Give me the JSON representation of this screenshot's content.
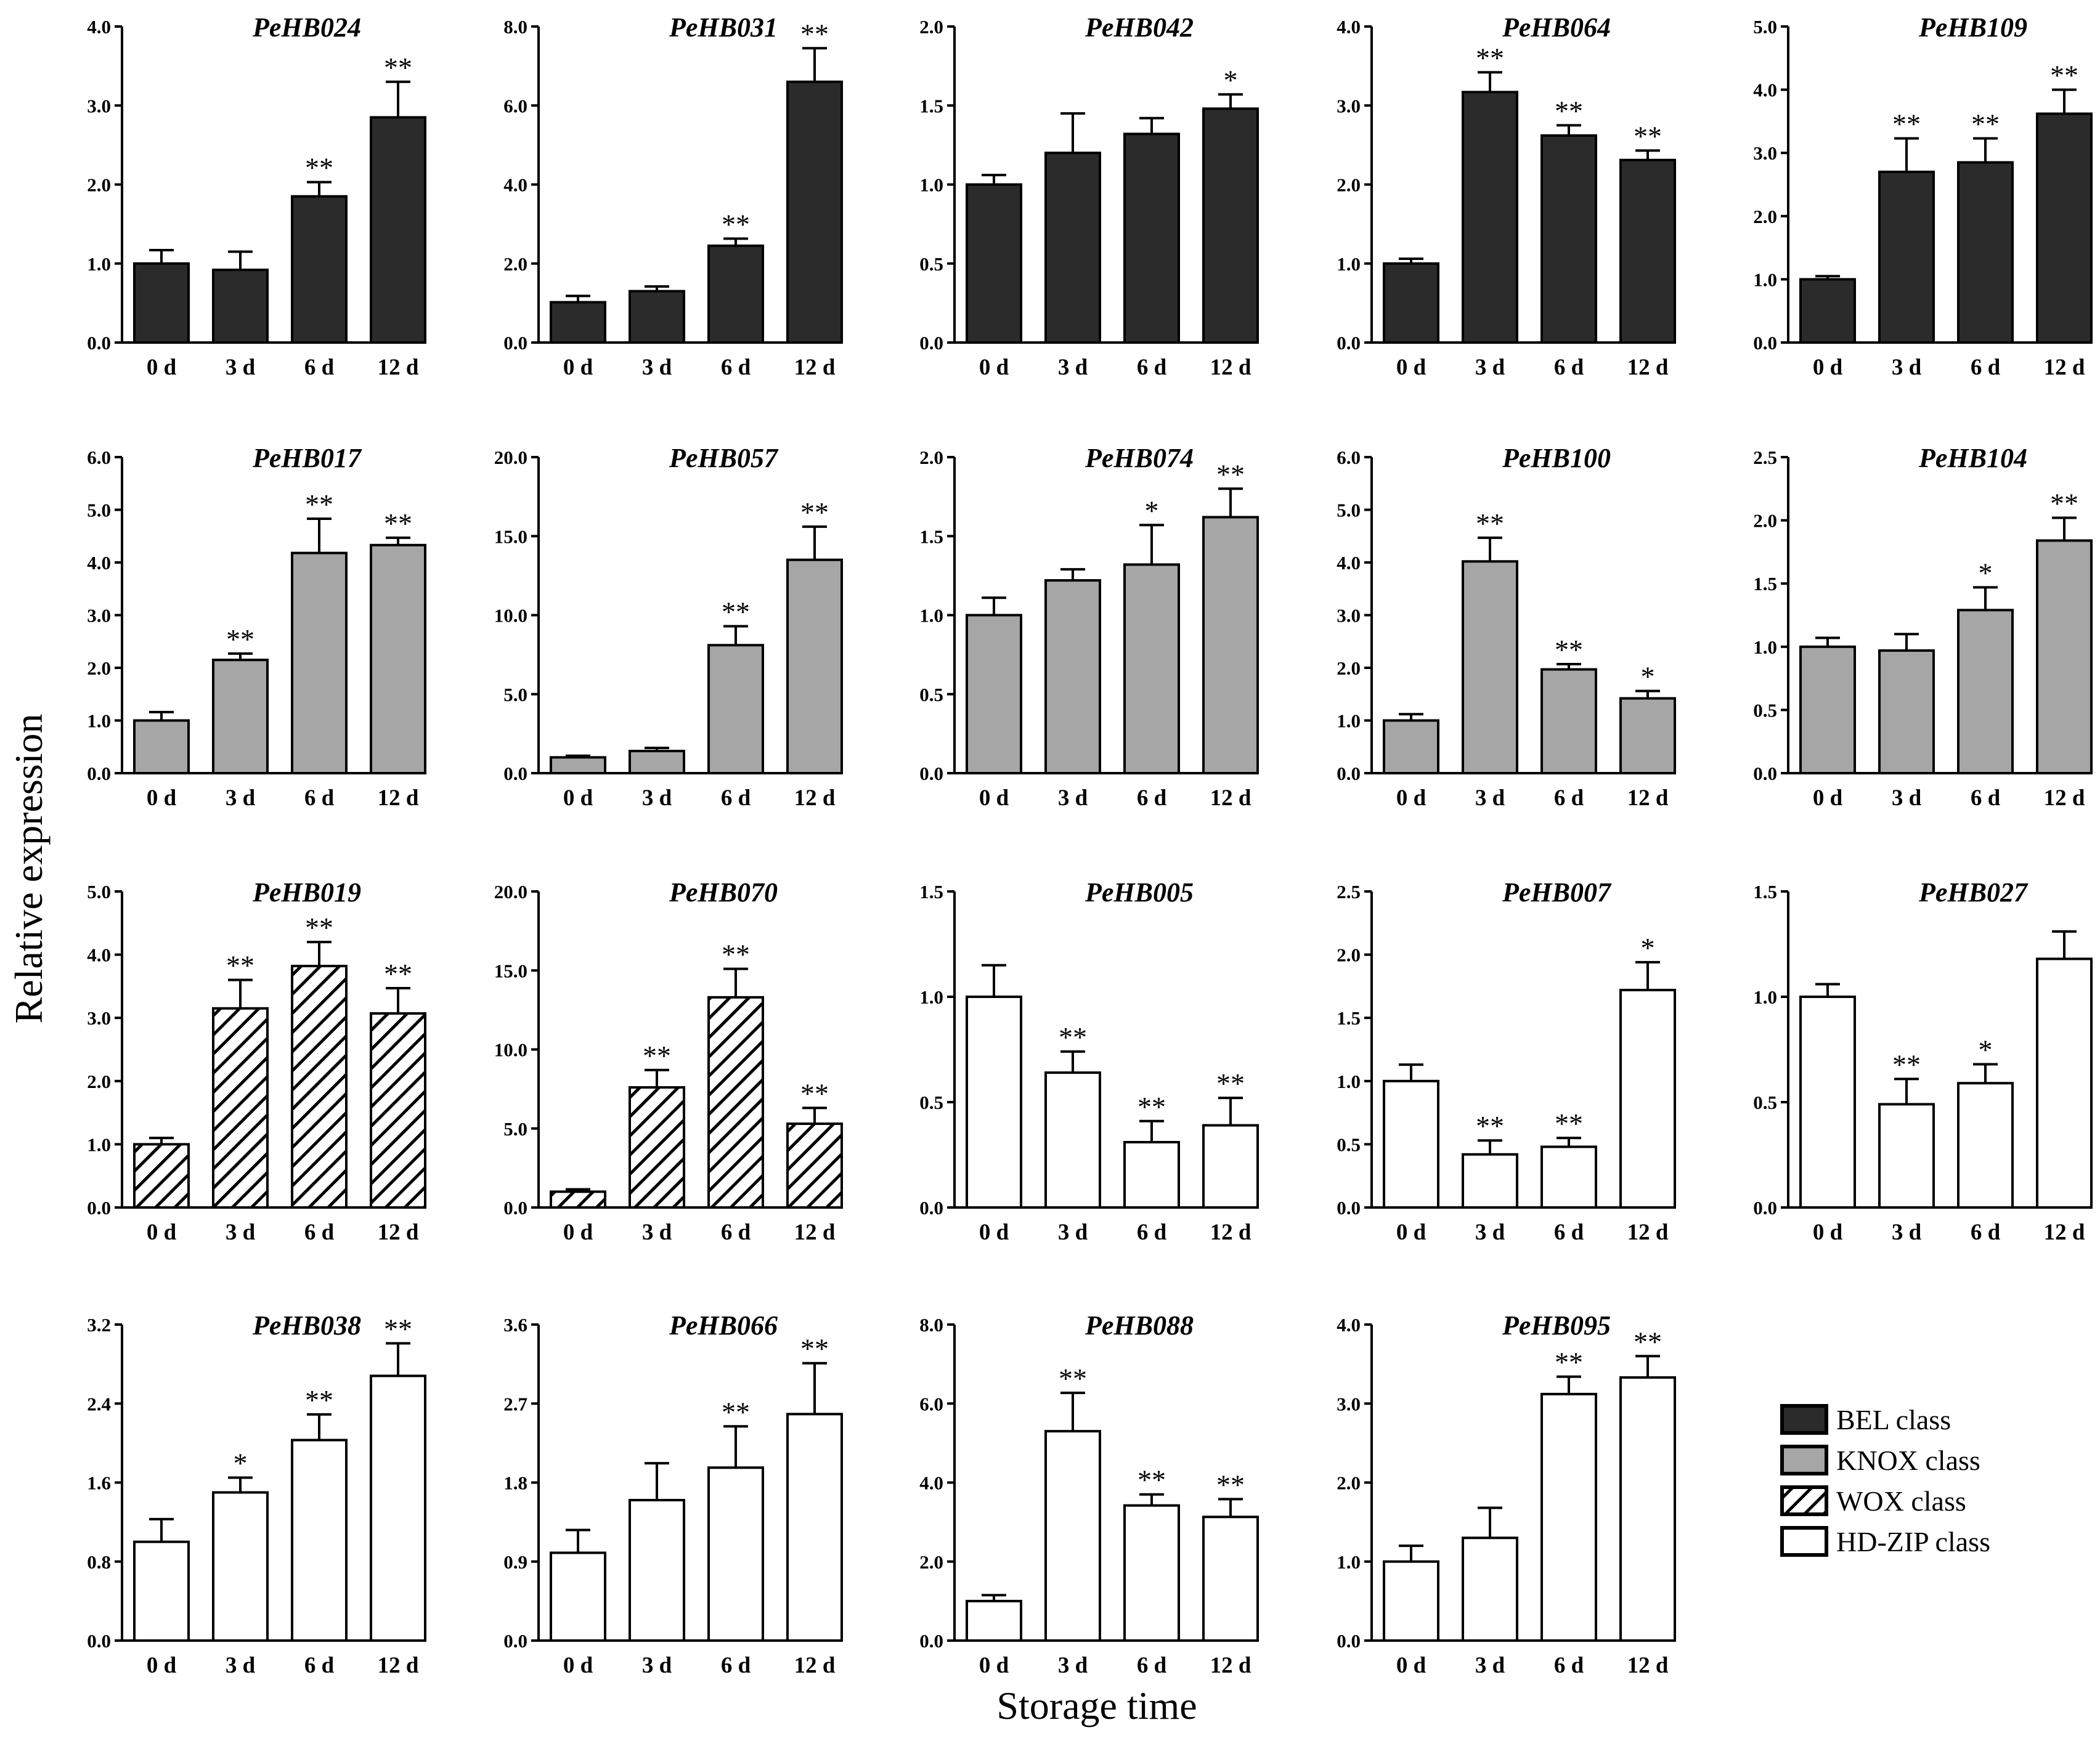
{
  "figure": {
    "y_axis_title": "Relative expression",
    "x_axis_title": "Storage time"
  },
  "legend": [
    {
      "key": "BEL",
      "label": "BEL  class",
      "fill": "#2b2b2b",
      "pattern": "solid"
    },
    {
      "key": "KNOX",
      "label": "KNOX  class",
      "fill": "#a6a6a6",
      "pattern": "solid"
    },
    {
      "key": "WOX",
      "label": "WOX  class",
      "fill": "#ffffff",
      "pattern": "hatch"
    },
    {
      "key": "HDZIP",
      "label": "HD-ZIP  class",
      "fill": "#ffffff",
      "pattern": "solid"
    }
  ],
  "chart_data": [
    {
      "type": "bar",
      "title": "PeHB024",
      "class": "BEL",
      "categories": [
        "0 d",
        "3 d",
        "6 d",
        "12 d"
      ],
      "values": [
        1.0,
        0.92,
        1.85,
        2.85
      ],
      "errors": [
        0.17,
        0.23,
        0.18,
        0.45
      ],
      "significance": [
        "",
        "",
        "**",
        "**"
      ],
      "ylim": [
        0,
        4.0
      ],
      "yticks": [
        "0.0",
        "1.0",
        "2.0",
        "3.0",
        "4.0"
      ]
    },
    {
      "type": "bar",
      "title": "PeHB031",
      "class": "BEL",
      "categories": [
        "0 d",
        "3 d",
        "6 d",
        "12 d"
      ],
      "values": [
        1.02,
        1.3,
        2.45,
        6.6
      ],
      "errors": [
        0.16,
        0.12,
        0.18,
        0.85
      ],
      "significance": [
        "",
        "",
        "**",
        "**"
      ],
      "ylim": [
        0,
        8.0
      ],
      "yticks": [
        "0.0",
        "2.0",
        "4.0",
        "6.0",
        "8.0"
      ]
    },
    {
      "type": "bar",
      "title": "PeHB042",
      "class": "BEL",
      "categories": [
        "0 d",
        "3 d",
        "6 d",
        "12 d"
      ],
      "values": [
        1.0,
        1.2,
        1.32,
        1.48
      ],
      "errors": [
        0.06,
        0.25,
        0.1,
        0.09
      ],
      "significance": [
        "",
        "",
        "",
        "*"
      ],
      "ylim": [
        0,
        2.0
      ],
      "yticks": [
        "0.0",
        "0.5",
        "1.0",
        "1.5",
        "2.0"
      ]
    },
    {
      "type": "bar",
      "title": "PeHB064",
      "class": "BEL",
      "categories": [
        "0 d",
        "3 d",
        "6 d",
        "12 d"
      ],
      "values": [
        1.0,
        3.17,
        2.62,
        2.31
      ],
      "errors": [
        0.06,
        0.25,
        0.13,
        0.12
      ],
      "significance": [
        "",
        "**",
        "**",
        "**"
      ],
      "ylim": [
        0,
        4.0
      ],
      "yticks": [
        "0.0",
        "1.0",
        "2.0",
        "3.0",
        "4.0"
      ]
    },
    {
      "type": "bar",
      "title": "PeHB109",
      "class": "BEL",
      "categories": [
        "0 d",
        "3 d",
        "6 d",
        "12 d"
      ],
      "values": [
        1.0,
        2.7,
        2.85,
        3.62
      ],
      "errors": [
        0.05,
        0.53,
        0.38,
        0.38
      ],
      "significance": [
        "",
        "**",
        "**",
        "**"
      ],
      "ylim": [
        0,
        5.0
      ],
      "yticks": [
        "0.0",
        "1.0",
        "2.0",
        "3.0",
        "4.0",
        "5.0"
      ]
    },
    {
      "type": "bar",
      "title": "PeHB017",
      "class": "KNOX",
      "categories": [
        "0 d",
        "3 d",
        "6 d",
        "12 d"
      ],
      "values": [
        1.0,
        2.15,
        4.18,
        4.33
      ],
      "errors": [
        0.16,
        0.12,
        0.65,
        0.14
      ],
      "significance": [
        "",
        "**",
        "**",
        "**"
      ],
      "ylim": [
        0,
        6.0
      ],
      "yticks": [
        "0.0",
        "1.0",
        "2.0",
        "3.0",
        "4.0",
        "5.0",
        "6.0"
      ]
    },
    {
      "type": "bar",
      "title": "PeHB057",
      "class": "KNOX",
      "categories": [
        "0 d",
        "3 d",
        "6 d",
        "12 d"
      ],
      "values": [
        1.0,
        1.4,
        8.1,
        13.5
      ],
      "errors": [
        0.1,
        0.2,
        1.2,
        2.1
      ],
      "significance": [
        "",
        "",
        "**",
        "**"
      ],
      "ylim": [
        0,
        20.0
      ],
      "yticks": [
        "0.0",
        "5.0",
        "10.0",
        "15.0",
        "20.0"
      ]
    },
    {
      "type": "bar",
      "title": "PeHB074",
      "class": "KNOX",
      "categories": [
        "0 d",
        "3 d",
        "6 d",
        "12 d"
      ],
      "values": [
        1.0,
        1.22,
        1.32,
        1.62
      ],
      "errors": [
        0.11,
        0.07,
        0.25,
        0.18
      ],
      "significance": [
        "",
        "",
        "*",
        "**"
      ],
      "ylim": [
        0,
        2.0
      ],
      "yticks": [
        "0.0",
        "0.5",
        "1.0",
        "1.5",
        "2.0"
      ]
    },
    {
      "type": "bar",
      "title": "PeHB100",
      "class": "KNOX",
      "categories": [
        "0 d",
        "3 d",
        "6 d",
        "12 d"
      ],
      "values": [
        1.0,
        4.02,
        1.97,
        1.42
      ],
      "errors": [
        0.12,
        0.45,
        0.1,
        0.14
      ],
      "significance": [
        "",
        "**",
        "**",
        "*"
      ],
      "ylim": [
        0,
        6.0
      ],
      "yticks": [
        "0.0",
        "1.0",
        "2.0",
        "3.0",
        "4.0",
        "5.0",
        "6.0"
      ]
    },
    {
      "type": "bar",
      "title": "PeHB104",
      "class": "KNOX",
      "categories": [
        "0 d",
        "3 d",
        "6 d",
        "12 d"
      ],
      "values": [
        1.0,
        0.97,
        1.29,
        1.84
      ],
      "errors": [
        0.07,
        0.13,
        0.18,
        0.18
      ],
      "significance": [
        "",
        "",
        "*",
        "**"
      ],
      "ylim": [
        0,
        2.5
      ],
      "yticks": [
        "0.0",
        "0.5",
        "1.0",
        "1.5",
        "2.0",
        "2.5"
      ]
    },
    {
      "type": "bar",
      "title": "PeHB019",
      "class": "WOX",
      "categories": [
        "0 d",
        "3 d",
        "6 d",
        "12 d"
      ],
      "values": [
        1.0,
        3.15,
        3.82,
        3.07
      ],
      "errors": [
        0.1,
        0.45,
        0.38,
        0.4
      ],
      "significance": [
        "",
        "**",
        "**",
        "**"
      ],
      "ylim": [
        0,
        5.0
      ],
      "yticks": [
        "0.0",
        "1.0",
        "2.0",
        "3.0",
        "4.0",
        "5.0"
      ]
    },
    {
      "type": "bar",
      "title": "PeHB070",
      "class": "WOX",
      "categories": [
        "0 d",
        "3 d",
        "6 d",
        "12 d"
      ],
      "values": [
        1.0,
        7.6,
        13.3,
        5.3
      ],
      "errors": [
        0.15,
        1.1,
        1.8,
        1.0
      ],
      "significance": [
        "",
        "**",
        "**",
        "**"
      ],
      "ylim": [
        0,
        20.0
      ],
      "yticks": [
        "0.0",
        "5.0",
        "10.0",
        "15.0",
        "20.0"
      ]
    },
    {
      "type": "bar",
      "title": "PeHB005",
      "class": "HDZIP",
      "categories": [
        "0 d",
        "3 d",
        "6 d",
        "12 d"
      ],
      "values": [
        1.0,
        0.64,
        0.31,
        0.39
      ],
      "errors": [
        0.15,
        0.1,
        0.1,
        0.13
      ],
      "significance": [
        "",
        "**",
        "**",
        "**"
      ],
      "ylim": [
        0,
        1.5
      ],
      "yticks": [
        "0.0",
        "0.5",
        "1.0",
        "1.5"
      ]
    },
    {
      "type": "bar",
      "title": "PeHB007",
      "class": "HDZIP",
      "categories": [
        "0 d",
        "3 d",
        "6 d",
        "12 d"
      ],
      "values": [
        1.0,
        0.42,
        0.48,
        1.72
      ],
      "errors": [
        0.13,
        0.11,
        0.07,
        0.22
      ],
      "significance": [
        "",
        "**",
        "**",
        "*"
      ],
      "ylim": [
        0,
        2.5
      ],
      "yticks": [
        "0.0",
        "0.5",
        "1.0",
        "1.5",
        "2.0",
        "2.5"
      ]
    },
    {
      "type": "bar",
      "title": "PeHB027",
      "class": "HDZIP",
      "categories": [
        "0 d",
        "3 d",
        "6 d",
        "12 d"
      ],
      "values": [
        1.0,
        0.49,
        0.59,
        1.18
      ],
      "errors": [
        0.06,
        0.12,
        0.09,
        0.13
      ],
      "significance": [
        "",
        "**",
        "*",
        ""
      ],
      "ylim": [
        0,
        1.5
      ],
      "yticks": [
        "0.0",
        "0.5",
        "1.0",
        "1.5"
      ]
    },
    {
      "type": "bar",
      "title": "PeHB038",
      "class": "HDZIP",
      "categories": [
        "0 d",
        "3 d",
        "6 d",
        "12 d"
      ],
      "values": [
        1.0,
        1.5,
        2.03,
        2.68
      ],
      "errors": [
        0.23,
        0.15,
        0.26,
        0.33
      ],
      "significance": [
        "",
        "*",
        "**",
        "**"
      ],
      "ylim": [
        0,
        3.2
      ],
      "yticks": [
        "0.0",
        "0.8",
        "1.6",
        "2.4",
        "3.2"
      ]
    },
    {
      "type": "bar",
      "title": "PeHB066",
      "class": "HDZIP",
      "categories": [
        "0 d",
        "3 d",
        "6 d",
        "12 d"
      ],
      "values": [
        1.0,
        1.6,
        1.97,
        2.58
      ],
      "errors": [
        0.26,
        0.42,
        0.47,
        0.58
      ],
      "significance": [
        "",
        "",
        "**",
        "**"
      ],
      "ylim": [
        0,
        3.6
      ],
      "yticks": [
        "0.0",
        "0.9",
        "1.8",
        "2.7",
        "3.6"
      ]
    },
    {
      "type": "bar",
      "title": "PeHB088",
      "class": "HDZIP",
      "categories": [
        "0 d",
        "3 d",
        "6 d",
        "12 d"
      ],
      "values": [
        1.0,
        5.3,
        3.42,
        3.13
      ],
      "errors": [
        0.15,
        0.97,
        0.28,
        0.45
      ],
      "significance": [
        "",
        "**",
        "**",
        "**"
      ],
      "ylim": [
        0,
        8.0
      ],
      "yticks": [
        "0.0",
        "2.0",
        "4.0",
        "6.0",
        "8.0"
      ]
    },
    {
      "type": "bar",
      "title": "PeHB095",
      "class": "HDZIP",
      "categories": [
        "0 d",
        "3 d",
        "6 d",
        "12 d"
      ],
      "values": [
        1.0,
        1.3,
        3.12,
        3.33
      ],
      "errors": [
        0.2,
        0.38,
        0.22,
        0.27
      ],
      "significance": [
        "",
        "",
        "**",
        "**"
      ],
      "ylim": [
        0,
        4.0
      ],
      "yticks": [
        "0.0",
        "1.0",
        "2.0",
        "3.0",
        "4.0"
      ]
    }
  ]
}
